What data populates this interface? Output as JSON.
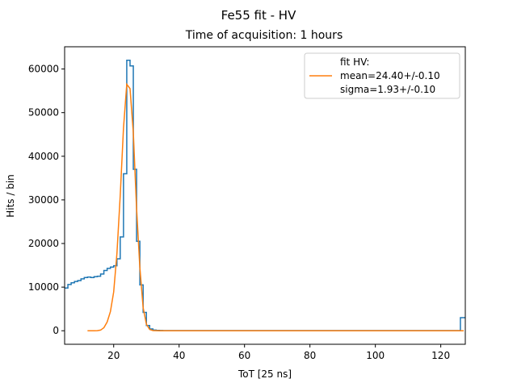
{
  "chart_data": {
    "type": "line",
    "title": "Fe55 fit - HV",
    "subtitle": "Time of acquisition: 1 hours",
    "xlabel": "ToT [25 ns]",
    "ylabel": "Hits / bin",
    "xlim": [
      5,
      127.5
    ],
    "ylim": [
      -3100,
      65100
    ],
    "x_ticks": [
      20,
      40,
      60,
      80,
      100,
      120
    ],
    "y_ticks": [
      0,
      10000,
      20000,
      30000,
      40000,
      50000,
      60000
    ],
    "grid": false,
    "legend_position": "top-right",
    "legend": {
      "title": "fit HV:",
      "lines": [
        "mean=24.40+/-0.10",
        "sigma=1.93+/-0.10"
      ]
    },
    "series": [
      {
        "style": "step",
        "color": "#1f77b4",
        "x": [
          5,
          6,
          7,
          8,
          9,
          10,
          11,
          12,
          13,
          14,
          15,
          16,
          17,
          18,
          19,
          20,
          21,
          22,
          23,
          24,
          25,
          26,
          27,
          28,
          29,
          30,
          31,
          32,
          33,
          34,
          35,
          40,
          60,
          80,
          100,
          120,
          126,
          127
        ],
        "y": [
          9800,
          10600,
          11000,
          11300,
          11500,
          11900,
          12200,
          12300,
          12200,
          12400,
          12500,
          13000,
          13800,
          14300,
          14600,
          14900,
          16500,
          21500,
          36000,
          62000,
          60700,
          37000,
          20500,
          10500,
          4200,
          1200,
          400,
          150,
          80,
          60,
          50,
          50,
          50,
          50,
          50,
          50,
          3000,
          3000
        ]
      },
      {
        "name": "mean=24.40+/-0.10 sigma=1.93+/-0.10",
        "style": "line",
        "color": "#ff7f0e",
        "x": [
          12,
          13,
          14,
          15,
          16,
          17,
          18,
          19,
          20,
          21,
          22,
          23,
          24,
          25,
          26,
          27,
          28,
          29,
          30,
          31,
          32,
          34,
          40,
          60,
          80,
          100,
          120,
          127
        ],
        "y": [
          0,
          0,
          0,
          20,
          150,
          700,
          2000,
          4400,
          8900,
          17800,
          31000,
          46500,
          56500,
          55500,
          45400,
          28000,
          14500,
          5300,
          1500,
          300,
          40,
          0,
          0,
          0,
          0,
          0,
          0,
          0
        ]
      }
    ]
  }
}
